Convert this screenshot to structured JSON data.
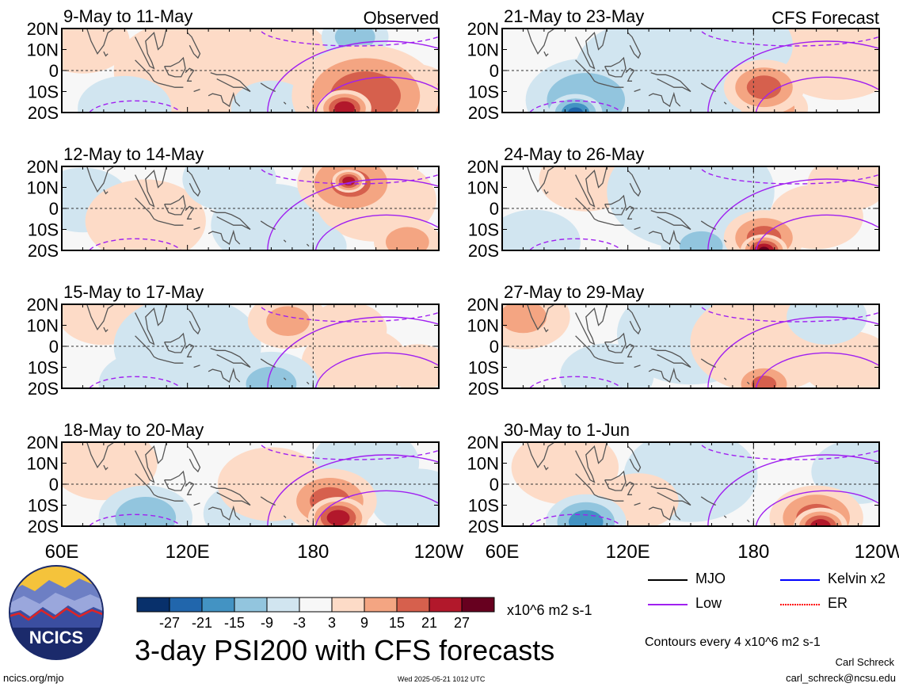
{
  "chart_data": {
    "type": "heatmap",
    "title": "3-day PSI200 with CFS forecasts",
    "units": "x10^6 m2 s-1",
    "contour_note": "Contours every 4 x10^6 m2 s-1",
    "lat_ticks": [
      "20N",
      "10N",
      "0",
      "10S",
      "20S"
    ],
    "lon_ticks": [
      "60E",
      "120E",
      "180",
      "120W"
    ],
    "colorbar": {
      "labels": [
        "-27",
        "-21",
        "-15",
        "-9",
        "-3",
        "3",
        "9",
        "15",
        "21",
        "27"
      ],
      "colors": [
        "#08306b",
        "#2166ac",
        "#4393c3",
        "#92c5de",
        "#d1e5f0",
        "#f7f7f7",
        "#fddbc7",
        "#f4a582",
        "#d6604d",
        "#b2182b",
        "#67001f"
      ]
    },
    "legend": [
      {
        "label": "MJO",
        "color": "#000000"
      },
      {
        "label": "Kelvin x2",
        "color": "#0000ff"
      },
      {
        "label": "Low",
        "color": "#a020f0"
      },
      {
        "label": "ER",
        "color": "#ff0000"
      }
    ],
    "panels": [
      {
        "title": "9-May to 11-May",
        "tag": "Observed",
        "blobs": [
          {
            "lon": 205,
            "lat": -12,
            "v": 20,
            "r": 22
          },
          {
            "lon": 225,
            "lat": -14,
            "v": 18,
            "r": 16
          },
          {
            "lon": 195,
            "lat": -18,
            "v": 26,
            "r": 8
          },
          {
            "lon": 196,
            "lat": -2,
            "v": -6,
            "r": 12
          },
          {
            "lon": 200,
            "lat": 16,
            "v": -12,
            "r": 10
          },
          {
            "lon": 120,
            "lat": 0,
            "v": 4,
            "r": 22
          },
          {
            "lon": 160,
            "lat": 6,
            "v": 3,
            "r": 18
          },
          {
            "lon": 70,
            "lat": 14,
            "v": 5,
            "r": 14
          },
          {
            "lon": 90,
            "lat": -18,
            "v": -6,
            "r": 14
          },
          {
            "lon": 160,
            "lat": -18,
            "v": -4,
            "r": 12
          }
        ]
      },
      {
        "title": "21-May to 23-May",
        "tag": "CFS Forecast",
        "blobs": [
          {
            "lon": 185,
            "lat": -8,
            "v": 18,
            "r": 12
          },
          {
            "lon": 190,
            "lat": -18,
            "v": 12,
            "r": 10
          },
          {
            "lon": 100,
            "lat": -14,
            "v": -14,
            "r": 18
          },
          {
            "lon": 95,
            "lat": -20,
            "v": -22,
            "r": 8
          },
          {
            "lon": 130,
            "lat": 0,
            "v": -4,
            "r": 22
          },
          {
            "lon": 170,
            "lat": 12,
            "v": -5,
            "r": 18
          },
          {
            "lon": 220,
            "lat": 8,
            "v": 4,
            "r": 20
          },
          {
            "lon": 165,
            "lat": -18,
            "v": -6,
            "r": 10
          }
        ]
      },
      {
        "title": "12-May to 14-May",
        "tag": "",
        "blobs": [
          {
            "lon": 198,
            "lat": 12,
            "v": 16,
            "r": 16
          },
          {
            "lon": 197,
            "lat": 13,
            "v": 26,
            "r": 5
          },
          {
            "lon": 210,
            "lat": 4,
            "v": 8,
            "r": 18
          },
          {
            "lon": 225,
            "lat": -16,
            "v": 14,
            "r": 10
          },
          {
            "lon": 160,
            "lat": -8,
            "v": -5,
            "r": 18
          },
          {
            "lon": 140,
            "lat": 14,
            "v": -4,
            "r": 14
          },
          {
            "lon": 70,
            "lat": 4,
            "v": -3,
            "r": 14
          },
          {
            "lon": 100,
            "lat": -6,
            "v": 3,
            "r": 18
          },
          {
            "lon": 180,
            "lat": -18,
            "v": -8,
            "r": 10
          }
        ]
      },
      {
        "title": "24-May to 26-May",
        "tag": "",
        "blobs": [
          {
            "lon": 185,
            "lat": -14,
            "v": 18,
            "r": 12
          },
          {
            "lon": 185,
            "lat": -20,
            "v": 28,
            "r": 7
          },
          {
            "lon": 150,
            "lat": 8,
            "v": -6,
            "r": 25
          },
          {
            "lon": 75,
            "lat": -16,
            "v": -8,
            "r": 14
          },
          {
            "lon": 155,
            "lat": -18,
            "v": -10,
            "r": 12
          },
          {
            "lon": 225,
            "lat": 12,
            "v": 8,
            "r": 12
          },
          {
            "lon": 100,
            "lat": 14,
            "v": 4,
            "r": 14
          },
          {
            "lon": 210,
            "lat": -4,
            "v": 4,
            "r": 14
          }
        ]
      },
      {
        "title": "15-May to 17-May",
        "tag": "",
        "blobs": [
          {
            "lon": 168,
            "lat": 12,
            "v": 10,
            "r": 12
          },
          {
            "lon": 196,
            "lat": 8,
            "v": 8,
            "r": 12
          },
          {
            "lon": 160,
            "lat": -18,
            "v": -10,
            "r": 14
          },
          {
            "lon": 100,
            "lat": -18,
            "v": -8,
            "r": 14
          },
          {
            "lon": 120,
            "lat": 0,
            "v": -4,
            "r": 22
          },
          {
            "lon": 80,
            "lat": 16,
            "v": 3,
            "r": 14
          },
          {
            "lon": 200,
            "lat": -8,
            "v": 3,
            "r": 16
          },
          {
            "lon": 230,
            "lat": -10,
            "v": 6,
            "r": 10
          }
        ]
      },
      {
        "title": "27-May to 29-May",
        "tag": "",
        "blobs": [
          {
            "lon": 70,
            "lat": 14,
            "v": 9,
            "r": 14
          },
          {
            "lon": 185,
            "lat": -18,
            "v": 16,
            "r": 10
          },
          {
            "lon": 150,
            "lat": 6,
            "v": -5,
            "r": 22
          },
          {
            "lon": 110,
            "lat": -14,
            "v": -5,
            "r": 14
          },
          {
            "lon": 185,
            "lat": 2,
            "v": 5,
            "r": 22
          },
          {
            "lon": 215,
            "lat": 14,
            "v": -6,
            "r": 12
          },
          {
            "lon": 225,
            "lat": -8,
            "v": 4,
            "r": 14
          }
        ]
      },
      {
        "title": "18-May to 20-May",
        "tag": "",
        "blobs": [
          {
            "lon": 188,
            "lat": -8,
            "v": 18,
            "r": 14
          },
          {
            "lon": 192,
            "lat": -16,
            "v": 26,
            "r": 9
          },
          {
            "lon": 160,
            "lat": 0,
            "v": 8,
            "r": 16
          },
          {
            "lon": 100,
            "lat": -16,
            "v": -14,
            "r": 14
          },
          {
            "lon": 150,
            "lat": -14,
            "v": -6,
            "r": 14
          },
          {
            "lon": 205,
            "lat": 10,
            "v": -6,
            "r": 16
          },
          {
            "lon": 80,
            "lat": 10,
            "v": 5,
            "r": 16
          },
          {
            "lon": 230,
            "lat": -8,
            "v": -4,
            "r": 14
          }
        ]
      },
      {
        "title": "30-May to 1-Jun",
        "tag": "",
        "blobs": [
          {
            "lon": 210,
            "lat": -16,
            "v": 18,
            "r": 14
          },
          {
            "lon": 212,
            "lat": -20,
            "v": 26,
            "r": 8
          },
          {
            "lon": 100,
            "lat": -18,
            "v": -18,
            "r": 12
          },
          {
            "lon": 230,
            "lat": 6,
            "v": -8,
            "r": 14
          },
          {
            "lon": 150,
            "lat": 4,
            "v": -4,
            "r": 20
          },
          {
            "lon": 90,
            "lat": 8,
            "v": 4,
            "r": 16
          },
          {
            "lon": 125,
            "lat": -8,
            "v": 4,
            "r": 12
          }
        ]
      }
    ]
  },
  "footer": {
    "site": "ncics.org/mjo",
    "timestamp": "Wed 2025-05-21 1012 UTC",
    "author": "Carl Schreck",
    "email": "carl_schreck@ncsu.edu"
  },
  "logo": {
    "text": "NCICS"
  }
}
